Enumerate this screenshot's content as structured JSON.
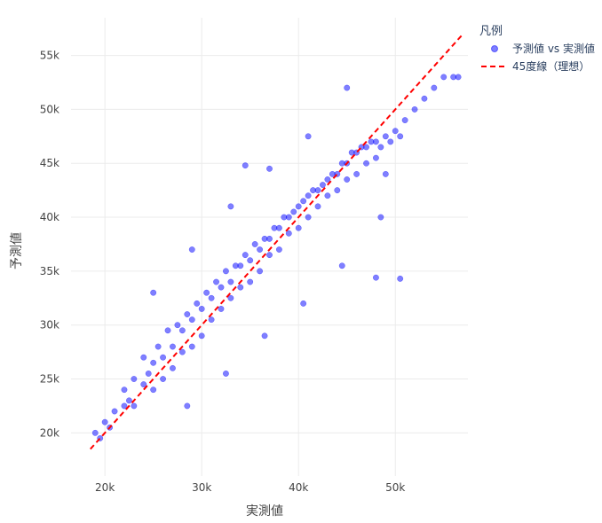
{
  "chart_data": {
    "type": "scatter",
    "xlabel": "実測値",
    "ylabel": "予測値",
    "xlim": [
      16500,
      57500
    ],
    "ylim": [
      16000,
      58500
    ],
    "x_ticks": [
      20000,
      30000,
      40000,
      50000
    ],
    "x_tick_labels": [
      "20k",
      "30k",
      "40k",
      "50k"
    ],
    "y_ticks": [
      20000,
      25000,
      30000,
      35000,
      40000,
      45000,
      50000,
      55000
    ],
    "y_tick_labels": [
      "20k",
      "25k",
      "30k",
      "35k",
      "40k",
      "45k",
      "50k",
      "55k"
    ],
    "grid": true,
    "legend": {
      "title": "凡例",
      "placement": "top-right outside",
      "items": [
        {
          "label": "予測値 vs 実測値",
          "kind": "marker",
          "color": "#0000ff"
        },
        {
          "label": "45度線（理想）",
          "kind": "dashed-line",
          "color": "#ff0000"
        }
      ]
    },
    "series": [
      {
        "name": "予測値 vs 実測値",
        "type": "scatter",
        "color": "#0000ff",
        "opacity": 0.5,
        "x": [
          19000,
          19500,
          20000,
          20500,
          21000,
          22000,
          22000,
          22500,
          23000,
          23000,
          24000,
          24000,
          24500,
          25000,
          25000,
          25500,
          26000,
          26000,
          26500,
          27000,
          27000,
          27500,
          28000,
          28000,
          28500,
          29000,
          29000,
          29500,
          30000,
          30000,
          30500,
          31000,
          31000,
          31500,
          32000,
          32000,
          32500,
          33000,
          33000,
          33500,
          34000,
          34000,
          34500,
          35000,
          35000,
          35500,
          36000,
          36000,
          36500,
          37000,
          37000,
          37500,
          38000,
          38000,
          38500,
          39000,
          39000,
          39500,
          40000,
          40000,
          40500,
          41000,
          41000,
          41500,
          42000,
          42000,
          42500,
          43000,
          43000,
          43500,
          44000,
          44000,
          44500,
          45000,
          45000,
          45500,
          46000,
          46000,
          46500,
          47000,
          47000,
          47500,
          48000,
          48000,
          48500,
          49000,
          49500,
          50000,
          50500,
          51000,
          52000,
          53000,
          54000,
          55000,
          56000,
          56500,
          25000,
          29000,
          33000,
          37000,
          41000,
          45000,
          49000,
          28500,
          32500,
          36500,
          40500,
          44500,
          48500,
          34500,
          48000,
          50500
        ],
        "y": [
          20000,
          19500,
          21000,
          20500,
          22000,
          22500,
          24000,
          23000,
          25000,
          22500,
          24500,
          27000,
          25500,
          26500,
          24000,
          28000,
          27000,
          25000,
          29500,
          28000,
          26000,
          30000,
          29500,
          27500,
          31000,
          30500,
          28000,
          32000,
          31500,
          29000,
          33000,
          32500,
          30500,
          34000,
          33500,
          31500,
          35000,
          34000,
          32500,
          35500,
          35500,
          33500,
          36500,
          36000,
          34000,
          37500,
          37000,
          35000,
          38000,
          38000,
          36500,
          39000,
          39000,
          37000,
          40000,
          40000,
          38500,
          40500,
          41000,
          39000,
          41500,
          42000,
          40000,
          42500,
          42500,
          41000,
          43000,
          43500,
          42000,
          44000,
          44000,
          42500,
          45000,
          45000,
          43500,
          46000,
          46000,
          44000,
          46500,
          46500,
          45000,
          47000,
          47000,
          45500,
          46500,
          47500,
          47000,
          48000,
          47500,
          49000,
          50000,
          51000,
          52000,
          53000,
          53000,
          53000,
          33000,
          37000,
          41000,
          44500,
          47500,
          52000,
          44000,
          22500,
          25500,
          29000,
          32000,
          35500,
          40000,
          44800,
          34400,
          34300
        ]
      },
      {
        "name": "45度線（理想）",
        "type": "line",
        "dash": "dashed",
        "color": "#ff0000",
        "x": [
          18500,
          57000
        ],
        "y": [
          18500,
          57000
        ]
      }
    ]
  }
}
